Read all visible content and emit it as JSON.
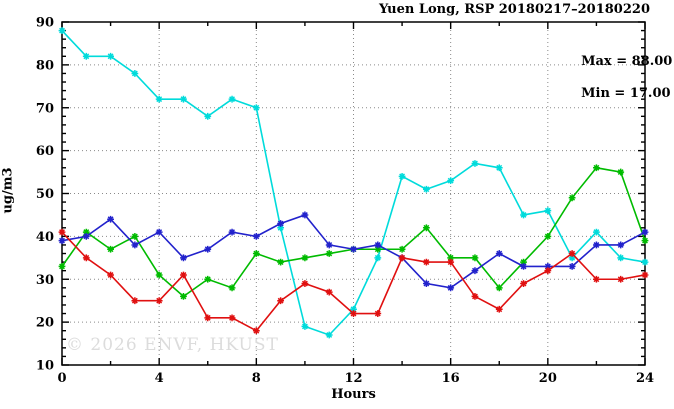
{
  "chart_data": {
    "type": "line",
    "title": "Yuen Long, RSP 20180217–20180220",
    "xlabel": "Hours",
    "ylabel": "ug/m3",
    "xlim": [
      0,
      24
    ],
    "ylim": [
      10,
      90
    ],
    "x_ticks": [
      0,
      4,
      8,
      12,
      16,
      20,
      24
    ],
    "y_ticks": [
      10,
      20,
      30,
      40,
      50,
      60,
      70,
      80,
      90
    ],
    "x_minor_step": 2,
    "y_minor_step": 2,
    "grid_style": "dotted",
    "grid_color": "#8a8a8a",
    "annotation": {
      "max_label": "Max = 88.00",
      "min_label": "Min = 17.00"
    },
    "x": [
      0,
      1,
      2,
      3,
      4,
      5,
      6,
      7,
      8,
      9,
      10,
      11,
      12,
      13,
      14,
      15,
      16,
      17,
      18,
      19,
      20,
      21,
      22,
      23,
      24
    ],
    "series": [
      {
        "id": "line-cyan",
        "color": "#00DBDB",
        "values": [
          88,
          82,
          82,
          78,
          72,
          72,
          68,
          72,
          70,
          42,
          19,
          17,
          23,
          35,
          54,
          51,
          53,
          57,
          56,
          45,
          46,
          35,
          41,
          35,
          34
        ]
      },
      {
        "id": "line-green",
        "color": "#00BB00",
        "values": [
          33,
          41,
          37,
          40,
          31,
          26,
          30,
          28,
          36,
          34,
          35,
          36,
          37,
          37,
          37,
          42,
          35,
          35,
          28,
          34,
          40,
          49,
          56,
          55,
          39
        ]
      },
      {
        "id": "line-blue",
        "color": "#2222CC",
        "values": [
          39,
          40,
          44,
          38,
          41,
          35,
          37,
          41,
          40,
          43,
          45,
          38,
          37,
          38,
          35,
          29,
          28,
          32,
          36,
          33,
          33,
          33,
          38,
          38,
          41
        ]
      },
      {
        "id": "line-red",
        "color": "#E01010",
        "values": [
          41,
          35,
          31,
          25,
          25,
          31,
          21,
          21,
          18,
          25,
          29,
          27,
          22,
          22,
          35,
          34,
          34,
          26,
          23,
          29,
          32,
          36,
          30,
          30,
          31
        ]
      }
    ]
  },
  "watermark": "© 2026 ENVF, HKUST"
}
